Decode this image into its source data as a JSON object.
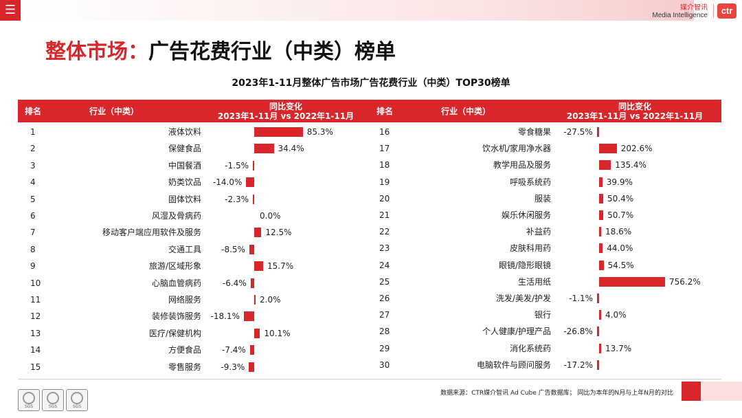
{
  "header": {
    "menu_icon": "hamburger-menu-icon",
    "brand_cn": "媒介智讯",
    "brand_en": "Media Intelligence",
    "logo_text": "ctr"
  },
  "title": {
    "prefix": "整体市场：",
    "main": "广告花费行业（中类）榜单"
  },
  "table_title": "2023年1-11月整体广告市场广告花费行业（中类）TOP30榜单",
  "columns": {
    "rank": "排名",
    "industry": "行业（中类）",
    "change_line1": "同比变化",
    "change_line2": "2023年1-11月 vs 2022年1-11月"
  },
  "left_rows": [
    {
      "rank": "1",
      "industry": "液体饮料",
      "value": 85.3,
      "label": "85.3%"
    },
    {
      "rank": "2",
      "industry": "保健食品",
      "value": 34.4,
      "label": "34.4%"
    },
    {
      "rank": "3",
      "industry": "中国餐酒",
      "value": -1.5,
      "label": "-1.5%"
    },
    {
      "rank": "4",
      "industry": "奶类饮品",
      "value": -14.0,
      "label": "-14.0%"
    },
    {
      "rank": "5",
      "industry": "固体饮料",
      "value": -2.3,
      "label": "-2.3%"
    },
    {
      "rank": "6",
      "industry": "风湿及骨病药",
      "value": 0.0,
      "label": "0.0%"
    },
    {
      "rank": "7",
      "industry": "移动客户端应用软件及服务",
      "value": 12.5,
      "label": "12.5%"
    },
    {
      "rank": "8",
      "industry": "交通工具",
      "value": -8.5,
      "label": "-8.5%"
    },
    {
      "rank": "9",
      "industry": "旅游/区域形象",
      "value": 15.7,
      "label": "15.7%"
    },
    {
      "rank": "10",
      "industry": "心脑血管病药",
      "value": -6.4,
      "label": "-6.4%"
    },
    {
      "rank": "11",
      "industry": "网络服务",
      "value": 2.0,
      "label": "2.0%"
    },
    {
      "rank": "12",
      "industry": "装修装饰服务",
      "value": -18.1,
      "label": "-18.1%"
    },
    {
      "rank": "13",
      "industry": "医疗/保健机构",
      "value": 10.1,
      "label": "10.1%"
    },
    {
      "rank": "14",
      "industry": "方便食品",
      "value": -7.4,
      "label": "-7.4%"
    },
    {
      "rank": "15",
      "industry": "零售服务",
      "value": -9.3,
      "label": "-9.3%"
    }
  ],
  "right_rows": [
    {
      "rank": "16",
      "industry": "零食糖果",
      "value": -27.5,
      "label": "-27.5%"
    },
    {
      "rank": "17",
      "industry": "饮水机/家用净水器",
      "value": 202.6,
      "label": "202.6%"
    },
    {
      "rank": "18",
      "industry": "教学用品及服务",
      "value": 135.4,
      "label": "135.4%"
    },
    {
      "rank": "19",
      "industry": "呼吸系统药",
      "value": 39.9,
      "label": "39.9%"
    },
    {
      "rank": "20",
      "industry": "服装",
      "value": 50.4,
      "label": "50.4%"
    },
    {
      "rank": "21",
      "industry": "娱乐休闲服务",
      "value": 50.7,
      "label": "50.7%"
    },
    {
      "rank": "22",
      "industry": "补益药",
      "value": 18.6,
      "label": "18.6%"
    },
    {
      "rank": "23",
      "industry": "皮肤科用药",
      "value": 44.0,
      "label": "44.0%"
    },
    {
      "rank": "24",
      "industry": "眼镜/隐形眼镜",
      "value": 54.5,
      "label": "54.5%"
    },
    {
      "rank": "25",
      "industry": "生活用纸",
      "value": 756.2,
      "label": "756.2%"
    },
    {
      "rank": "26",
      "industry": "洗发/美发/护发",
      "value": -1.1,
      "label": "-1.1%"
    },
    {
      "rank": "27",
      "industry": "银行",
      "value": 4.0,
      "label": "4.0%"
    },
    {
      "rank": "28",
      "industry": "个人健康/护理产品",
      "value": -26.8,
      "label": "-26.8%"
    },
    {
      "rank": "29",
      "industry": "消化系统药",
      "value": 13.7,
      "label": "13.7%"
    },
    {
      "rank": "30",
      "industry": "电脑软件与顾问服务",
      "value": -17.2,
      "label": "-17.2%"
    }
  ],
  "source": "数据来源：CTR媒介智讯 Ad Cube 广告数据库；  同比为本年的N月与上年N月的对比",
  "cert_label": "SGS",
  "colors": {
    "accent": "#d9262b",
    "bar": "#d9262b"
  }
}
